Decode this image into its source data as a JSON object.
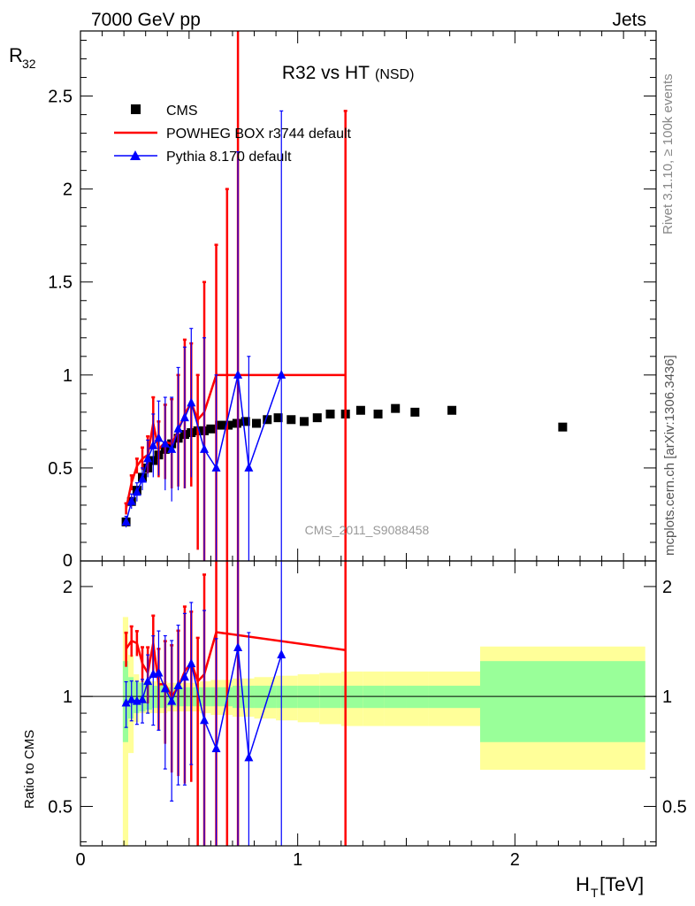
{
  "header": {
    "energy_label": "7000 GeV pp",
    "process_label": "Jets"
  },
  "side_labels": {
    "rivet": "Rivet 3.1.10, ≥ 100k events",
    "mcplots": "mcplots.cern.ch [arXiv:1306.3436]"
  },
  "chart_data": {
    "type": "scatter",
    "title": "R32 vs HT",
    "title_suffix": "(NSD)",
    "analysis_tag": "CMS_2011_S9088458",
    "xlabel_main": "H",
    "xlabel_sub": "T",
    "xlabel_unit": "[TeV]",
    "ylabel_main": "R",
    "ylabel_sub": "32",
    "ratio_ylabel": "Ratio to CMS",
    "xlim": [
      0,
      2.65
    ],
    "ylim_main": [
      0,
      2.85
    ],
    "ylim_ratio": [
      0.39,
      2.35
    ],
    "xticks": [
      0,
      1,
      2
    ],
    "xtick_labels": [
      "0",
      "1",
      "2"
    ],
    "yticks_main": [
      0.5,
      1,
      1.5,
      2,
      2.5
    ],
    "ytick_labels_main": [
      "0.5",
      "1",
      "1.5",
      "2",
      "2.5"
    ],
    "main_zero_label": "0",
    "yticks_ratio": [
      0.5,
      1,
      2
    ],
    "ytick_labels_ratio": [
      "0.5",
      "1",
      "2"
    ],
    "colors": {
      "data": "#000000",
      "powheg": "#ff0000",
      "pythia": "#0000ff",
      "band_inner": "#99ff99",
      "band_outer": "#ffff99"
    },
    "series": [
      {
        "name": "CMS",
        "style": "markers",
        "x": [
          0.21,
          0.235,
          0.26,
          0.285,
          0.31,
          0.335,
          0.36,
          0.39,
          0.42,
          0.45,
          0.48,
          0.51,
          0.54,
          0.57,
          0.6,
          0.64,
          0.68,
          0.72,
          0.76,
          0.81,
          0.86,
          0.91,
          0.97,
          1.03,
          1.09,
          1.15,
          1.22,
          1.29,
          1.37,
          1.45,
          1.54,
          1.71,
          2.22
        ],
        "y": [
          0.21,
          0.32,
          0.38,
          0.45,
          0.5,
          0.54,
          0.57,
          0.6,
          0.63,
          0.66,
          0.68,
          0.69,
          0.7,
          0.7,
          0.71,
          0.73,
          0.73,
          0.74,
          0.75,
          0.74,
          0.76,
          0.77,
          0.76,
          0.75,
          0.77,
          0.79,
          0.79,
          0.81,
          0.79,
          0.82,
          0.8,
          0.81,
          0.72
        ]
      },
      {
        "name": "POWHEG BOX r3744 default",
        "style": "line",
        "x": [
          0.21,
          0.235,
          0.26,
          0.285,
          0.31,
          0.335,
          0.36,
          0.39,
          0.42,
          0.45,
          0.48,
          0.51,
          0.54,
          0.57,
          0.625,
          1.22
        ],
        "y": [
          0.28,
          0.42,
          0.51,
          0.55,
          0.57,
          0.74,
          0.6,
          0.64,
          0.63,
          0.7,
          0.79,
          0.85,
          0.76,
          0.8,
          1.0,
          1.0
        ],
        "err_up": [
          0.03,
          0.04,
          0.04,
          0.06,
          0.1,
          0.14,
          0.15,
          0.2,
          0.24,
          0.3,
          0.4,
          0.32,
          0.24,
          0.7,
          0.7,
          1.42
        ],
        "err_down": [
          0.03,
          0.04,
          0.04,
          0.06,
          0.1,
          0.14,
          0.15,
          0.2,
          0.24,
          0.3,
          0.4,
          0.45,
          0.7,
          0.8,
          1.0,
          1.0
        ],
        "extra_error_bars": [
          {
            "x": 0.675,
            "y_low": 0,
            "y_high": 2.0
          },
          {
            "x": 0.725,
            "y_low": 0,
            "y_high": 2.85
          }
        ],
        "ratio": [
          1.35,
          1.42,
          1.4,
          1.23,
          1.16,
          1.4,
          1.08,
          1.08,
          1.0,
          1.06,
          1.17,
          1.24,
          1.1,
          1.15,
          1.5,
          1.34
        ]
      },
      {
        "name": "Pythia 8.170 default",
        "style": "line-markers",
        "x": [
          0.21,
          0.235,
          0.26,
          0.285,
          0.31,
          0.335,
          0.36,
          0.39,
          0.42,
          0.45,
          0.48,
          0.51,
          0.57,
          0.625,
          0.725,
          0.775,
          0.925
        ],
        "y": [
          0.21,
          0.32,
          0.37,
          0.44,
          0.55,
          0.62,
          0.66,
          0.63,
          0.6,
          0.71,
          0.77,
          0.85,
          0.6,
          0.5,
          1.0,
          0.5,
          1.0
        ],
        "err": [
          0.03,
          0.04,
          0.05,
          0.06,
          0.1,
          0.17,
          0.2,
          0.25,
          0.28,
          0.33,
          0.38,
          0.4,
          0.6,
          0.5,
          1.2,
          0.6,
          1.42
        ],
        "ratio": [
          0.96,
          0.98,
          0.97,
          0.98,
          1.1,
          1.15,
          1.16,
          1.05,
          0.97,
          1.07,
          1.13,
          1.23,
          0.86,
          0.72,
          1.36,
          0.68,
          1.3
        ]
      }
    ],
    "ratio_band": {
      "x_edges": [
        0.195,
        0.22,
        0.245,
        0.27,
        0.3,
        0.33,
        0.36,
        0.4,
        0.45,
        0.5,
        0.55,
        0.6,
        0.7,
        0.8,
        0.9,
        1.0,
        1.1,
        1.2,
        1.3,
        1.4,
        1.5,
        1.6,
        1.84,
        2.6
      ],
      "inner_half": [
        0.25,
        0.13,
        0.1,
        0.09,
        0.08,
        0.07,
        0.07,
        0.06,
        0.06,
        0.06,
        0.06,
        0.06,
        0.07,
        0.07,
        0.07,
        0.07,
        0.07,
        0.07,
        0.07,
        0.07,
        0.07,
        0.07,
        0.25
      ],
      "outer_half": [
        0.65,
        0.3,
        0.15,
        0.1,
        0.1,
        0.1,
        0.1,
        0.09,
        0.09,
        0.09,
        0.1,
        0.11,
        0.12,
        0.13,
        0.14,
        0.15,
        0.16,
        0.17,
        0.17,
        0.17,
        0.17,
        0.17,
        0.37
      ]
    }
  }
}
